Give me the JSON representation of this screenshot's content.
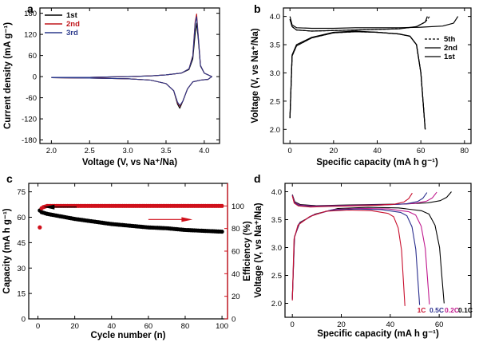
{
  "chart_data": [
    {
      "panel": "a",
      "type": "line",
      "xlabel": "Voltage (V, vs Na⁺/Na)",
      "ylabel": "Current density (mA g⁻¹)",
      "xlim": [
        1.85,
        4.2
      ],
      "ylim": [
        -190,
        195
      ],
      "xticks": [
        2.0,
        2.5,
        3.0,
        3.5,
        4.0
      ],
      "xtick_labels": [
        "2.0",
        "2.5",
        "3.0",
        "3.5",
        "4.0"
      ],
      "yticks": [
        -180,
        -120,
        -60,
        0,
        60,
        120,
        180
      ],
      "ytick_labels": [
        "-180",
        "-120",
        "-60",
        "0",
        "60",
        "120",
        "180"
      ],
      "legend_position": "top-left",
      "series": [
        {
          "name": "1st",
          "color": "#000000",
          "x": [
            2.0,
            2.5,
            3.0,
            3.3,
            3.5,
            3.7,
            3.8,
            3.85,
            3.88,
            3.9,
            3.92,
            3.95,
            4.0,
            4.1,
            4.05,
            3.95,
            3.85,
            3.78,
            3.72,
            3.68,
            3.65,
            3.6,
            3.5,
            3.3,
            3.0,
            2.5,
            2.0
          ],
          "y": [
            -2,
            -2,
            0,
            2,
            5,
            10,
            20,
            50,
            120,
            152,
            110,
            30,
            10,
            0,
            -8,
            -10,
            -15,
            -35,
            -70,
            -90,
            -78,
            -40,
            -20,
            -10,
            -6,
            -4,
            -3
          ]
        },
        {
          "name": "2nd",
          "color": "#c0161b",
          "x": [
            2.0,
            2.5,
            3.0,
            3.3,
            3.5,
            3.7,
            3.8,
            3.85,
            3.88,
            3.9,
            3.92,
            3.95,
            4.0,
            4.1,
            4.05,
            3.95,
            3.85,
            3.78,
            3.72,
            3.68,
            3.65,
            3.6,
            3.5,
            3.3,
            3.0,
            2.5,
            2.0
          ],
          "y": [
            -2,
            -2,
            0,
            2,
            5,
            10,
            22,
            60,
            155,
            178,
            120,
            32,
            10,
            0,
            -8,
            -10,
            -15,
            -35,
            -70,
            -84,
            -74,
            -40,
            -20,
            -10,
            -6,
            -4,
            -3
          ]
        },
        {
          "name": "3rd",
          "color": "#2b3a8c",
          "x": [
            2.0,
            2.5,
            3.0,
            3.3,
            3.5,
            3.7,
            3.8,
            3.85,
            3.88,
            3.9,
            3.92,
            3.95,
            4.0,
            4.1,
            4.05,
            3.95,
            3.85,
            3.78,
            3.72,
            3.68,
            3.65,
            3.6,
            3.5,
            3.3,
            3.0,
            2.5,
            2.0
          ],
          "y": [
            -2,
            -2,
            0,
            2,
            5,
            10,
            22,
            58,
            150,
            170,
            118,
            32,
            10,
            0,
            -8,
            -10,
            -15,
            -35,
            -70,
            -82,
            -72,
            -40,
            -20,
            -10,
            -6,
            -4,
            -3
          ]
        }
      ]
    },
    {
      "panel": "b",
      "type": "line",
      "xlabel": "Specific capacity (mA h g⁻¹)",
      "ylabel": "Voltage (V, vs Na⁺/Na)",
      "xlim": [
        -3,
        83
      ],
      "ylim": [
        1.75,
        4.15
      ],
      "xticks": [
        0,
        20,
        40,
        60,
        80
      ],
      "xtick_labels": [
        "0",
        "20",
        "40",
        "60",
        "80"
      ],
      "yticks": [
        2.0,
        2.5,
        3.0,
        3.5,
        4.0
      ],
      "ytick_labels": [
        "2.0",
        "2.5",
        "3.0",
        "3.5",
        "4.0"
      ],
      "legend_position": "right",
      "series": [
        {
          "name": "5th",
          "color": "#000000",
          "dash": "3,2",
          "charge_x": [
            0,
            1,
            3,
            10,
            20,
            30,
            40,
            50,
            58,
            62,
            64
          ],
          "charge_y": [
            3.95,
            3.82,
            3.76,
            3.74,
            3.75,
            3.76,
            3.77,
            3.78,
            3.82,
            3.9,
            4.0
          ],
          "discharge_x": [
            0,
            1,
            3,
            10,
            20,
            30,
            40,
            50,
            55,
            58,
            60,
            61,
            62
          ],
          "discharge_y": [
            2.2,
            3.3,
            3.48,
            3.62,
            3.71,
            3.73,
            3.72,
            3.69,
            3.65,
            3.5,
            3.0,
            2.5,
            2.0
          ]
        },
        {
          "name": "2nd",
          "color": "#000000",
          "dash": "",
          "charge_x": [
            0,
            1,
            3,
            10,
            20,
            30,
            40,
            50,
            58,
            62,
            63
          ],
          "charge_y": [
            3.95,
            3.82,
            3.76,
            3.74,
            3.75,
            3.76,
            3.77,
            3.78,
            3.82,
            3.9,
            4.0
          ],
          "discharge_x": [
            0,
            1,
            3,
            10,
            20,
            30,
            40,
            50,
            55,
            58,
            60,
            61,
            62
          ],
          "discharge_y": [
            2.2,
            3.3,
            3.48,
            3.62,
            3.71,
            3.73,
            3.72,
            3.69,
            3.65,
            3.5,
            3.0,
            2.5,
            2.0
          ]
        },
        {
          "name": "1st",
          "color": "#000000",
          "dash": "",
          "charge_x": [
            0,
            1,
            3,
            10,
            20,
            30,
            40,
            50,
            60,
            70,
            75,
            77
          ],
          "charge_y": [
            4.0,
            3.85,
            3.8,
            3.79,
            3.79,
            3.8,
            3.8,
            3.8,
            3.81,
            3.83,
            3.88,
            4.0
          ],
          "discharge_x": [
            0,
            1,
            3,
            10,
            20,
            30,
            40,
            50,
            55,
            58,
            60,
            61,
            62
          ],
          "discharge_y": [
            2.2,
            3.32,
            3.5,
            3.63,
            3.72,
            3.74,
            3.72,
            3.69,
            3.65,
            3.5,
            3.0,
            2.5,
            2.0
          ]
        }
      ]
    },
    {
      "panel": "c",
      "type": "scatter",
      "xlabel": "Cycle number (n)",
      "ylabel": "Capacity (mA h g⁻¹)",
      "y2label": "Efficiency (%)",
      "xlim": [
        -5,
        103
      ],
      "ylim": [
        0,
        80
      ],
      "y2lim": [
        0,
        120
      ],
      "xticks": [
        0,
        20,
        40,
        60,
        80,
        100
      ],
      "xtick_labels": [
        "0",
        "20",
        "40",
        "60",
        "80",
        "100"
      ],
      "yticks": [
        0,
        15,
        30,
        45,
        60,
        75
      ],
      "ytick_labels": [
        "0",
        "15",
        "30",
        "45",
        "60",
        "75"
      ],
      "y2ticks": [
        0,
        20,
        40,
        60,
        80,
        100
      ],
      "y2tick_labels": [
        "0",
        "20",
        "40",
        "60",
        "80",
        "100"
      ],
      "capacity_color": "#000000",
      "efficiency_color": "#d0101b",
      "capacity": {
        "x": [
          1,
          2,
          5,
          10,
          20,
          30,
          40,
          50,
          60,
          70,
          80,
          90,
          100
        ],
        "y": [
          64,
          63,
          62,
          61,
          59,
          57.5,
          56,
          55,
          54,
          53.5,
          52.5,
          52,
          51.5
        ]
      },
      "efficiency": {
        "x": [
          1,
          2,
          3,
          5,
          10,
          20,
          40,
          60,
          80,
          100
        ],
        "y": [
          81,
          98,
          99,
          100,
          100,
          100,
          100,
          100,
          100,
          100
        ]
      }
    },
    {
      "panel": "d",
      "type": "line",
      "xlabel": "Specific capacity (mA h g⁻¹)",
      "ylabel": "Voltage (V, vs Na⁺/Na)",
      "xlim": [
        -3,
        73
      ],
      "ylim": [
        1.75,
        4.15
      ],
      "xticks": [
        0,
        20,
        40,
        60
      ],
      "xtick_labels": [
        "0",
        "20",
        "40",
        "60"
      ],
      "yticks": [
        2.0,
        2.5,
        3.0,
        3.5,
        4.0
      ],
      "ytick_labels": [
        "2.0",
        "2.5",
        "3.0",
        "3.5",
        "4.0"
      ],
      "series": [
        {
          "name": "0.1C",
          "color": "#000000",
          "capacity": 65
        },
        {
          "name": "0.2C",
          "color": "#c01a8e",
          "capacity": 59
        },
        {
          "name": "0.5C",
          "color": "#2b2f8e",
          "capacity": 55
        },
        {
          "name": "1C",
          "color": "#c8102e",
          "capacity": 49
        }
      ]
    }
  ],
  "panels": {
    "a": {
      "label": "a"
    },
    "b": {
      "label": "b"
    },
    "c": {
      "label": "c"
    },
    "d": {
      "label": "d"
    }
  }
}
